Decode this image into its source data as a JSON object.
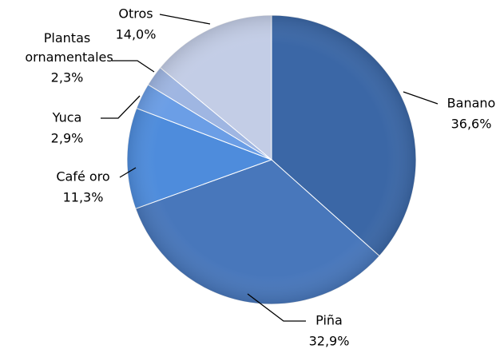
{
  "chart_data": {
    "type": "pie",
    "categories": [
      "Banano",
      "Piña",
      "Café oro",
      "Yuca",
      "Plantas ornamentales",
      "Otros"
    ],
    "values": [
      36.6,
      32.9,
      11.3,
      2.9,
      2.3,
      14.0
    ],
    "value_labels": [
      "36,6%",
      "32,9%",
      "11,3%",
      "2,9%",
      "2,3%",
      "14,0%"
    ],
    "colors": [
      "#3b67a6",
      "#4877bb",
      "#4e8cdc",
      "#6b9ee6",
      "#9fb6e2",
      "#c3cde6"
    ]
  }
}
